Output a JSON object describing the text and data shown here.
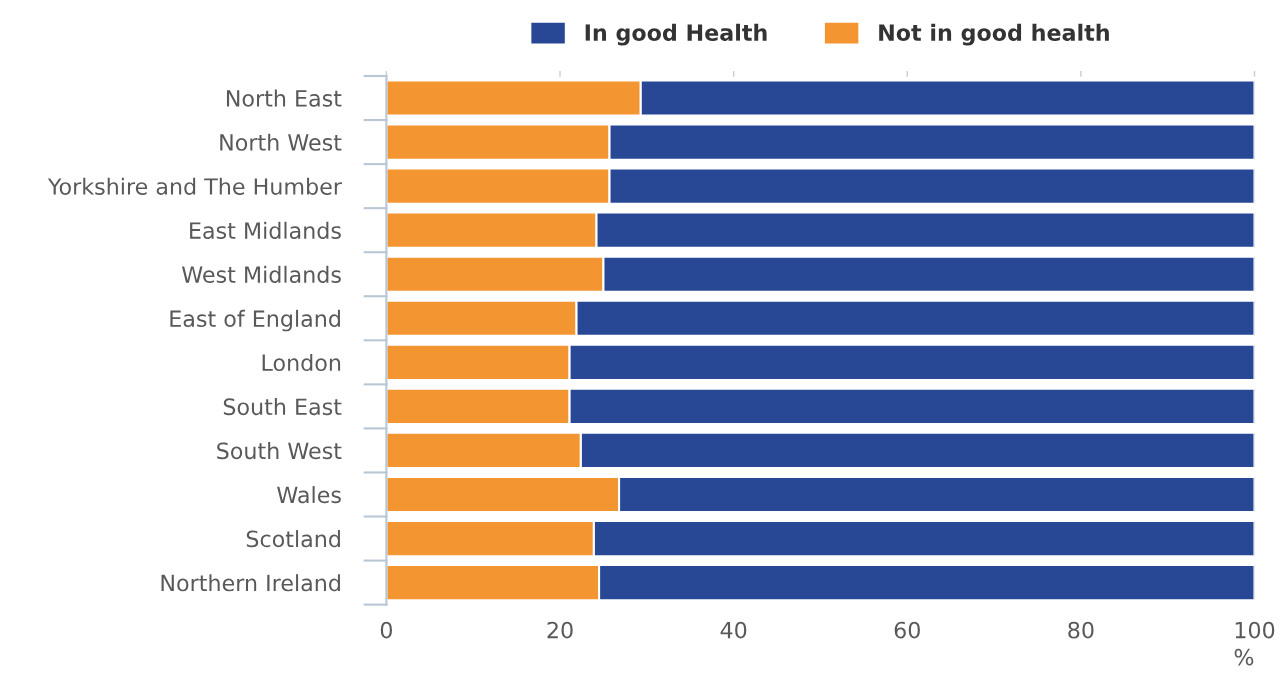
{
  "chart_data": {
    "type": "bar",
    "orientation": "horizontal",
    "stacked": true,
    "xlabel": "%",
    "categories": [
      "North East",
      "North West",
      "Yorkshire and The Humber",
      "East Midlands",
      "West Midlands",
      "East of England",
      "London",
      "South East",
      "South West",
      "Wales",
      "Scotland",
      "Northern Ireland"
    ],
    "series": [
      {
        "name": "Not in good health",
        "color": "#f39530",
        "values": [
          29.3,
          25.7,
          25.7,
          24.2,
          25.0,
          21.9,
          21.1,
          21.1,
          22.4,
          26.8,
          23.9,
          24.5
        ]
      },
      {
        "name": "In good Health",
        "color": "#284896",
        "values": [
          70.7,
          74.3,
          74.3,
          75.8,
          75.0,
          78.1,
          78.9,
          78.9,
          77.6,
          73.2,
          76.1,
          75.5
        ]
      }
    ],
    "xlim": [
      0,
      100
    ],
    "xticks": [
      0,
      20,
      40,
      60,
      80,
      100
    ],
    "grid": false,
    "legend": "top"
  }
}
